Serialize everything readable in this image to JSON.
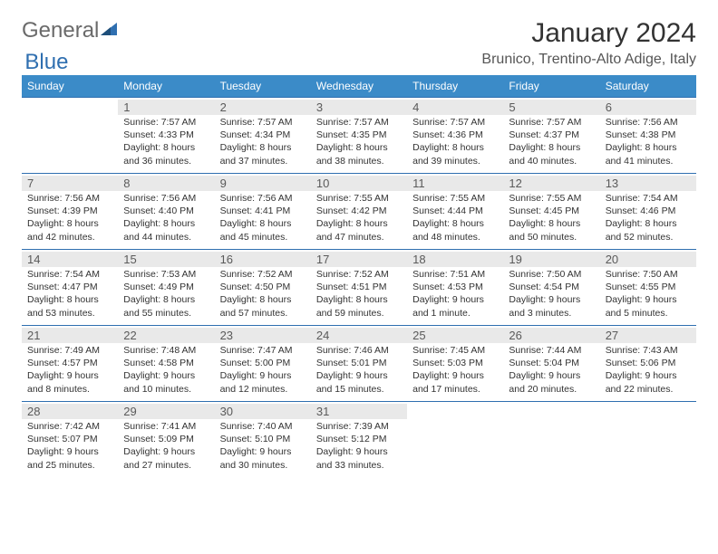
{
  "logo": {
    "text1": "General",
    "text2": "Blue"
  },
  "title": "January 2024",
  "location": "Brunico, Trentino-Alto Adige, Italy",
  "colors": {
    "header_bg": "#3b8bc8",
    "header_text": "#ffffff",
    "rule": "#2f6fb0",
    "daynum_shade": "#e9e9e9",
    "text": "#333333",
    "logo_gray": "#6a6a6a",
    "logo_blue": "#2f6fb0"
  },
  "weekdays": [
    "Sunday",
    "Monday",
    "Tuesday",
    "Wednesday",
    "Thursday",
    "Friday",
    "Saturday"
  ],
  "weeks": [
    [
      null,
      {
        "n": "1",
        "sr": "7:57 AM",
        "ss": "4:33 PM",
        "dl": "8 hours and 36 minutes."
      },
      {
        "n": "2",
        "sr": "7:57 AM",
        "ss": "4:34 PM",
        "dl": "8 hours and 37 minutes."
      },
      {
        "n": "3",
        "sr": "7:57 AM",
        "ss": "4:35 PM",
        "dl": "8 hours and 38 minutes."
      },
      {
        "n": "4",
        "sr": "7:57 AM",
        "ss": "4:36 PM",
        "dl": "8 hours and 39 minutes."
      },
      {
        "n": "5",
        "sr": "7:57 AM",
        "ss": "4:37 PM",
        "dl": "8 hours and 40 minutes."
      },
      {
        "n": "6",
        "sr": "7:56 AM",
        "ss": "4:38 PM",
        "dl": "8 hours and 41 minutes."
      }
    ],
    [
      {
        "n": "7",
        "sr": "7:56 AM",
        "ss": "4:39 PM",
        "dl": "8 hours and 42 minutes."
      },
      {
        "n": "8",
        "sr": "7:56 AM",
        "ss": "4:40 PM",
        "dl": "8 hours and 44 minutes."
      },
      {
        "n": "9",
        "sr": "7:56 AM",
        "ss": "4:41 PM",
        "dl": "8 hours and 45 minutes."
      },
      {
        "n": "10",
        "sr": "7:55 AM",
        "ss": "4:42 PM",
        "dl": "8 hours and 47 minutes."
      },
      {
        "n": "11",
        "sr": "7:55 AM",
        "ss": "4:44 PM",
        "dl": "8 hours and 48 minutes."
      },
      {
        "n": "12",
        "sr": "7:55 AM",
        "ss": "4:45 PM",
        "dl": "8 hours and 50 minutes."
      },
      {
        "n": "13",
        "sr": "7:54 AM",
        "ss": "4:46 PM",
        "dl": "8 hours and 52 minutes."
      }
    ],
    [
      {
        "n": "14",
        "sr": "7:54 AM",
        "ss": "4:47 PM",
        "dl": "8 hours and 53 minutes."
      },
      {
        "n": "15",
        "sr": "7:53 AM",
        "ss": "4:49 PM",
        "dl": "8 hours and 55 minutes."
      },
      {
        "n": "16",
        "sr": "7:52 AM",
        "ss": "4:50 PM",
        "dl": "8 hours and 57 minutes."
      },
      {
        "n": "17",
        "sr": "7:52 AM",
        "ss": "4:51 PM",
        "dl": "8 hours and 59 minutes."
      },
      {
        "n": "18",
        "sr": "7:51 AM",
        "ss": "4:53 PM",
        "dl": "9 hours and 1 minute."
      },
      {
        "n": "19",
        "sr": "7:50 AM",
        "ss": "4:54 PM",
        "dl": "9 hours and 3 minutes."
      },
      {
        "n": "20",
        "sr": "7:50 AM",
        "ss": "4:55 PM",
        "dl": "9 hours and 5 minutes."
      }
    ],
    [
      {
        "n": "21",
        "sr": "7:49 AM",
        "ss": "4:57 PM",
        "dl": "9 hours and 8 minutes."
      },
      {
        "n": "22",
        "sr": "7:48 AM",
        "ss": "4:58 PM",
        "dl": "9 hours and 10 minutes."
      },
      {
        "n": "23",
        "sr": "7:47 AM",
        "ss": "5:00 PM",
        "dl": "9 hours and 12 minutes."
      },
      {
        "n": "24",
        "sr": "7:46 AM",
        "ss": "5:01 PM",
        "dl": "9 hours and 15 minutes."
      },
      {
        "n": "25",
        "sr": "7:45 AM",
        "ss": "5:03 PM",
        "dl": "9 hours and 17 minutes."
      },
      {
        "n": "26",
        "sr": "7:44 AM",
        "ss": "5:04 PM",
        "dl": "9 hours and 20 minutes."
      },
      {
        "n": "27",
        "sr": "7:43 AM",
        "ss": "5:06 PM",
        "dl": "9 hours and 22 minutes."
      }
    ],
    [
      {
        "n": "28",
        "sr": "7:42 AM",
        "ss": "5:07 PM",
        "dl": "9 hours and 25 minutes."
      },
      {
        "n": "29",
        "sr": "7:41 AM",
        "ss": "5:09 PM",
        "dl": "9 hours and 27 minutes."
      },
      {
        "n": "30",
        "sr": "7:40 AM",
        "ss": "5:10 PM",
        "dl": "9 hours and 30 minutes."
      },
      {
        "n": "31",
        "sr": "7:39 AM",
        "ss": "5:12 PM",
        "dl": "9 hours and 33 minutes."
      },
      null,
      null,
      null
    ]
  ],
  "labels": {
    "sunrise": "Sunrise:",
    "sunset": "Sunset:",
    "daylight": "Daylight:"
  }
}
